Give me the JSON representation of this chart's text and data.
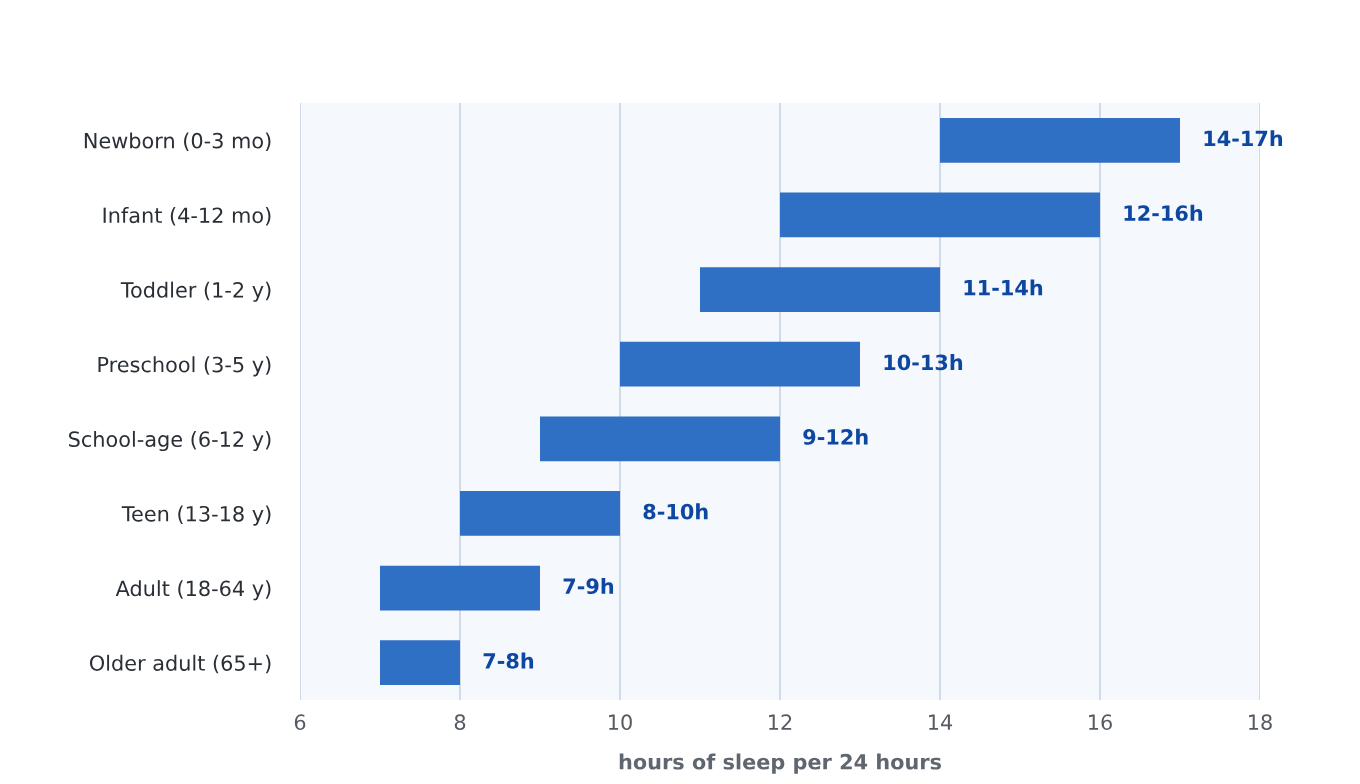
{
  "chart_data": {
    "type": "bar",
    "orientation": "horizontal",
    "xlabel": "hours of sleep per 24 hours",
    "categories": [
      "Newborn (0-3 mo)",
      "Infant (4-12 mo)",
      "Toddler (1-2 y)",
      "Preschool (3-5 y)",
      "School-age (6-12 y)",
      "Teen (13-18 y)",
      "Adult (18-64 y)",
      "Older adult (65+)"
    ],
    "base": [
      14,
      12,
      11,
      10,
      9,
      8,
      7,
      7
    ],
    "values": [
      3,
      4,
      3,
      3,
      3,
      2,
      2,
      1
    ],
    "value_labels": [
      "14-17h",
      "12-16h",
      "11-14h",
      "10-13h",
      "9-12h",
      "8-10h",
      "7-9h",
      "7-8h"
    ],
    "color": "#2f6fc4",
    "xlim": [
      6,
      18
    ],
    "xticks": [
      6,
      8,
      10,
      12,
      14,
      16,
      18
    ],
    "grid": "x"
  }
}
